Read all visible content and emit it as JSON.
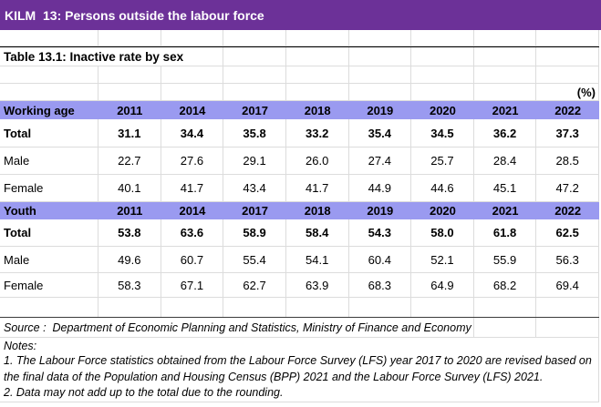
{
  "title": "KILM  13: Persons outside the labour force",
  "caption": "Table 13.1: Inactive rate by sex",
  "unit_label": "(%)",
  "years": [
    "2011",
    "2014",
    "2017",
    "2018",
    "2019",
    "2020",
    "2021",
    "2022"
  ],
  "sections": [
    {
      "header": "Working age",
      "rows": [
        {
          "label": "Total",
          "values": [
            "31.1",
            "34.4",
            "35.8",
            "33.2",
            "35.4",
            "34.5",
            "36.2",
            "37.3"
          ]
        },
        {
          "label": "Male",
          "values": [
            "22.7",
            "27.6",
            "29.1",
            "26.0",
            "27.4",
            "25.7",
            "28.4",
            "28.5"
          ]
        },
        {
          "label": "Female",
          "values": [
            "40.1",
            "41.7",
            "43.4",
            "41.7",
            "44.9",
            "44.6",
            "45.1",
            "47.2"
          ]
        }
      ]
    },
    {
      "header": "Youth",
      "rows": [
        {
          "label": "Total",
          "values": [
            "53.8",
            "63.6",
            "58.9",
            "58.4",
            "54.3",
            "58.0",
            "61.8",
            "62.5"
          ]
        },
        {
          "label": "Male",
          "values": [
            "49.6",
            "60.7",
            "55.4",
            "54.1",
            "60.4",
            "52.1",
            "55.9",
            "56.3"
          ]
        },
        {
          "label": "Female",
          "values": [
            "58.3",
            "67.1",
            "62.7",
            "63.9",
            "68.3",
            "64.9",
            "68.2",
            "69.4"
          ]
        }
      ]
    }
  ],
  "source": "Source :  Department of Economic Planning and Statistics, Ministry of Finance and Economy",
  "notes_label": "Notes:",
  "notes": [
    "1. The Labour Force statistics obtained from the Labour Force Survey (LFS) year 2017 to 2020 are revised based on the final data of the Population and Housing Census (BPP) 2021 and the Labour Force Survey (LFS) 2021.",
    "2. Data may not add up to the total due to the rounding."
  ],
  "colors": {
    "title_bar_bg": "#6C3198",
    "title_bar_text": "#FFFFFF",
    "section_header_bg": "#9A9AF0",
    "gridline": "#DCDCDC",
    "caption_border": "#000000"
  }
}
